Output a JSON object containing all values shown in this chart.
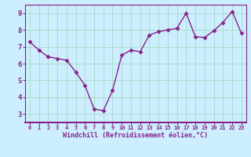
{
  "x": [
    0,
    1,
    2,
    3,
    4,
    5,
    6,
    7,
    8,
    9,
    10,
    11,
    12,
    13,
    14,
    15,
    16,
    17,
    18,
    19,
    20,
    21,
    22,
    23
  ],
  "y": [
    7.3,
    6.8,
    6.4,
    6.3,
    6.2,
    5.5,
    4.7,
    3.3,
    3.2,
    4.4,
    6.5,
    6.8,
    6.7,
    7.7,
    7.9,
    8.0,
    8.1,
    9.0,
    7.6,
    7.55,
    7.95,
    8.45,
    9.1,
    7.8
  ],
  "xlim": [
    -0.5,
    23.5
  ],
  "ylim": [
    2.5,
    9.5
  ],
  "yticks": [
    3,
    4,
    5,
    6,
    7,
    8,
    9
  ],
  "xticks": [
    0,
    1,
    2,
    3,
    4,
    5,
    6,
    7,
    8,
    9,
    10,
    11,
    12,
    13,
    14,
    15,
    16,
    17,
    18,
    19,
    20,
    21,
    22,
    23
  ],
  "xlabel": "Windchill (Refroidissement éolien,°C)",
  "line_color": "#882288",
  "marker": "D",
  "marker_size": 2.5,
  "bg_color": "#cceeff",
  "grid_color": "#aaddcc",
  "xlabel_color": "#882288",
  "tick_color": "#882288",
  "line_width": 1.0,
  "spine_color": "#882288"
}
